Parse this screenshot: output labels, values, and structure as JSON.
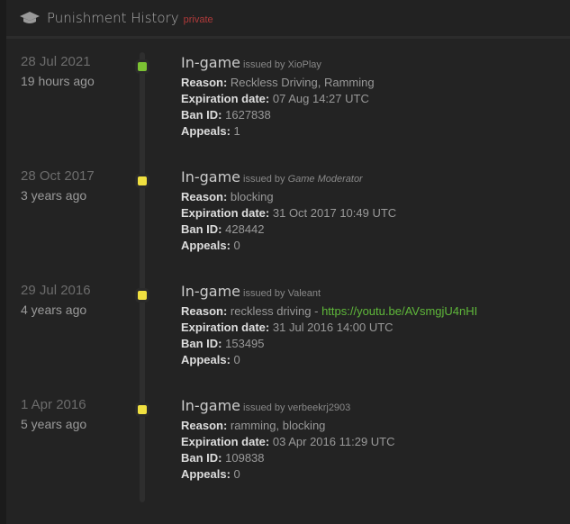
{
  "header": {
    "title": "Punishment History",
    "badge": "private",
    "icon": "graduation-cap-icon"
  },
  "labels": {
    "reason": "Reason:",
    "expiration": "Expiration date:",
    "ban_id": "Ban ID:",
    "appeals": "Appeals:",
    "issued_by": "issued by"
  },
  "colors": {
    "active": "#7cc233",
    "expired": "#f0e040",
    "badge": "#b03a3a",
    "link": "#5fb83a"
  },
  "entries": [
    {
      "date": "28 Jul 2021",
      "ago": "19 hours ago",
      "type": "In-game",
      "issuer": "XioPlay",
      "reason": "Reckless Driving, Ramming",
      "reason_link": "",
      "expiration": "07 Aug 14:27 UTC",
      "ban_id": "1627838",
      "appeals": "1",
      "status": "active"
    },
    {
      "date": "28 Oct 2017",
      "ago": "3 years ago",
      "type": "In-game",
      "issuer": "Game Moderator",
      "reason": "blocking",
      "reason_link": "",
      "expiration": "31 Oct 2017 10:49 UTC",
      "ban_id": "428442",
      "appeals": "0",
      "status": "expired"
    },
    {
      "date": "29 Jul 2016",
      "ago": "4 years ago",
      "type": "In-game",
      "issuer": "Valeant",
      "reason": "reckless driving - ",
      "reason_link": "https://youtu.be/AVsmgjU4nHI",
      "expiration": "31 Jul 2016 14:00 UTC",
      "ban_id": "153495",
      "appeals": "0",
      "status": "expired"
    },
    {
      "date": "1 Apr 2016",
      "ago": "5 years ago",
      "type": "In-game",
      "issuer": "verbeekrj2903",
      "reason": "ramming, blocking",
      "reason_link": "",
      "expiration": "03 Apr 2016 11:29 UTC",
      "ban_id": "109838",
      "appeals": "0",
      "status": "expired"
    }
  ]
}
